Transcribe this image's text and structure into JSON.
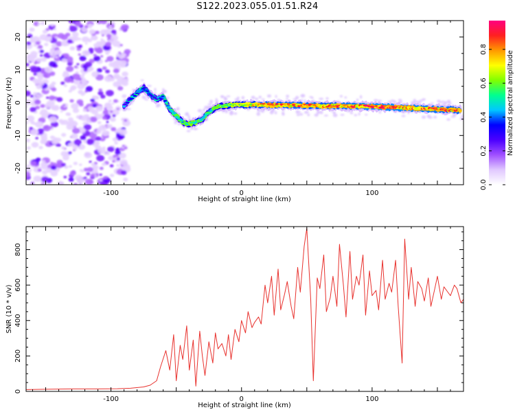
{
  "title": "S122.2023.055.01.51.R24",
  "colorbar": {
    "label": "Normalized spectral amplitude",
    "ticks": [
      "0.0",
      "0.2",
      "0.4",
      "0.6",
      "0.8"
    ],
    "tick_values": [
      0.0,
      0.2,
      0.4,
      0.6,
      0.8
    ],
    "range": [
      0.0,
      0.97
    ],
    "colors": [
      "#ffffff",
      "#e0c8ff",
      "#a050ff",
      "#4b00ff",
      "#0000ff",
      "#00c8ff",
      "#00ff90",
      "#80ff00",
      "#ffff00",
      "#ff9900",
      "#ff2020",
      "#ff0080"
    ]
  },
  "chart_data": [
    {
      "type": "heatmap",
      "name": "spectrogram",
      "xlabel": "Height of straight line (km)",
      "ylabel": "Frequency (Hz)",
      "xlim": [
        -165,
        170
      ],
      "ylim": [
        -25,
        25
      ],
      "x_ticks": [
        -100,
        0,
        100
      ],
      "x_tick_labels": [
        "-100",
        "0",
        "100"
      ],
      "y_ticks": [
        -20,
        -10,
        0,
        10,
        20
      ],
      "y_tick_labels": [
        "-20",
        "-10",
        "0",
        "10",
        "20"
      ],
      "noise_region_x": [
        -165,
        -87
      ],
      "ridge": {
        "x": [
          -90,
          -85,
          -80,
          -75,
          -70,
          -65,
          -60,
          -55,
          -50,
          -45,
          -40,
          -35,
          -30,
          -25,
          -20,
          -15,
          -10,
          -5,
          0,
          20,
          40,
          60,
          80,
          100,
          120,
          140,
          160,
          168
        ],
        "frequency": [
          -0.8,
          1.0,
          3.0,
          4.5,
          2.5,
          1.0,
          2.0,
          -2.0,
          -4.0,
          -6.0,
          -6.5,
          -6.0,
          -5.0,
          -3.0,
          -1.5,
          -1.0,
          -0.8,
          -0.6,
          -0.6,
          -0.7,
          -0.8,
          -1.0,
          -1.0,
          -1.2,
          -1.5,
          -1.8,
          -2.2,
          -2.3
        ],
        "amplitude": [
          0.25,
          0.4,
          0.45,
          0.42,
          0.35,
          0.4,
          0.45,
          0.5,
          0.55,
          0.55,
          0.6,
          0.65,
          0.62,
          0.55,
          0.6,
          0.65,
          0.7,
          0.72,
          0.75,
          0.85,
          0.88,
          0.85,
          0.9,
          0.95,
          0.93,
          0.9,
          0.88,
          0.85
        ]
      }
    },
    {
      "type": "line",
      "name": "snr",
      "xlabel": "Height of straight line (km)",
      "ylabel": "SNR (10 * v/v)",
      "xlim": [
        -165,
        170
      ],
      "ylim": [
        0,
        930
      ],
      "x_ticks": [
        -100,
        0,
        100
      ],
      "x_tick_labels": [
        "-100",
        "0",
        "100"
      ],
      "y_ticks": [
        0,
        200,
        400,
        600,
        800
      ],
      "y_tick_labels": [
        "0",
        "200",
        "400",
        "600",
        "800"
      ],
      "series": [
        {
          "color": "#e8302c",
          "x": [
            -165,
            -150,
            -130,
            -110,
            -95,
            -85,
            -75,
            -70,
            -65,
            -62,
            -58,
            -55,
            -52,
            -50,
            -47,
            -45,
            -42,
            -40,
            -37,
            -35,
            -32,
            -30,
            -28,
            -25,
            -22,
            -20,
            -18,
            -15,
            -12,
            -10,
            -8,
            -5,
            -2,
            0,
            3,
            5,
            8,
            10,
            13,
            15,
            18,
            20,
            23,
            25,
            28,
            30,
            33,
            35,
            38,
            40,
            43,
            45,
            48,
            50,
            53,
            55,
            58,
            60,
            63,
            65,
            68,
            70,
            73,
            75,
            78,
            80,
            83,
            85,
            88,
            90,
            93,
            95,
            98,
            100,
            103,
            105,
            108,
            110,
            113,
            115,
            118,
            120,
            123,
            125,
            128,
            130,
            133,
            135,
            138,
            140,
            143,
            145,
            148,
            150,
            153,
            155,
            158,
            160,
            163,
            165,
            168,
            170
          ],
          "values": [
            10,
            12,
            14,
            14,
            15,
            18,
            25,
            35,
            60,
            140,
            230,
            120,
            320,
            60,
            260,
            180,
            370,
            120,
            290,
            30,
            340,
            200,
            90,
            280,
            160,
            330,
            240,
            270,
            200,
            320,
            180,
            350,
            280,
            400,
            330,
            450,
            360,
            390,
            420,
            380,
            600,
            500,
            650,
            430,
            690,
            460,
            550,
            620,
            480,
            410,
            700,
            560,
            820,
            920,
            520,
            60,
            640,
            580,
            770,
            450,
            530,
            650,
            480,
            830,
            600,
            420,
            790,
            520,
            650,
            600,
            770,
            430,
            680,
            540,
            570,
            460,
            740,
            520,
            610,
            560,
            740,
            480,
            160,
            860,
            520,
            700,
            480,
            620,
            580,
            510,
            640,
            480,
            580,
            650,
            520,
            590,
            560,
            540,
            600,
            580,
            500,
            520
          ]
        }
      ]
    }
  ]
}
